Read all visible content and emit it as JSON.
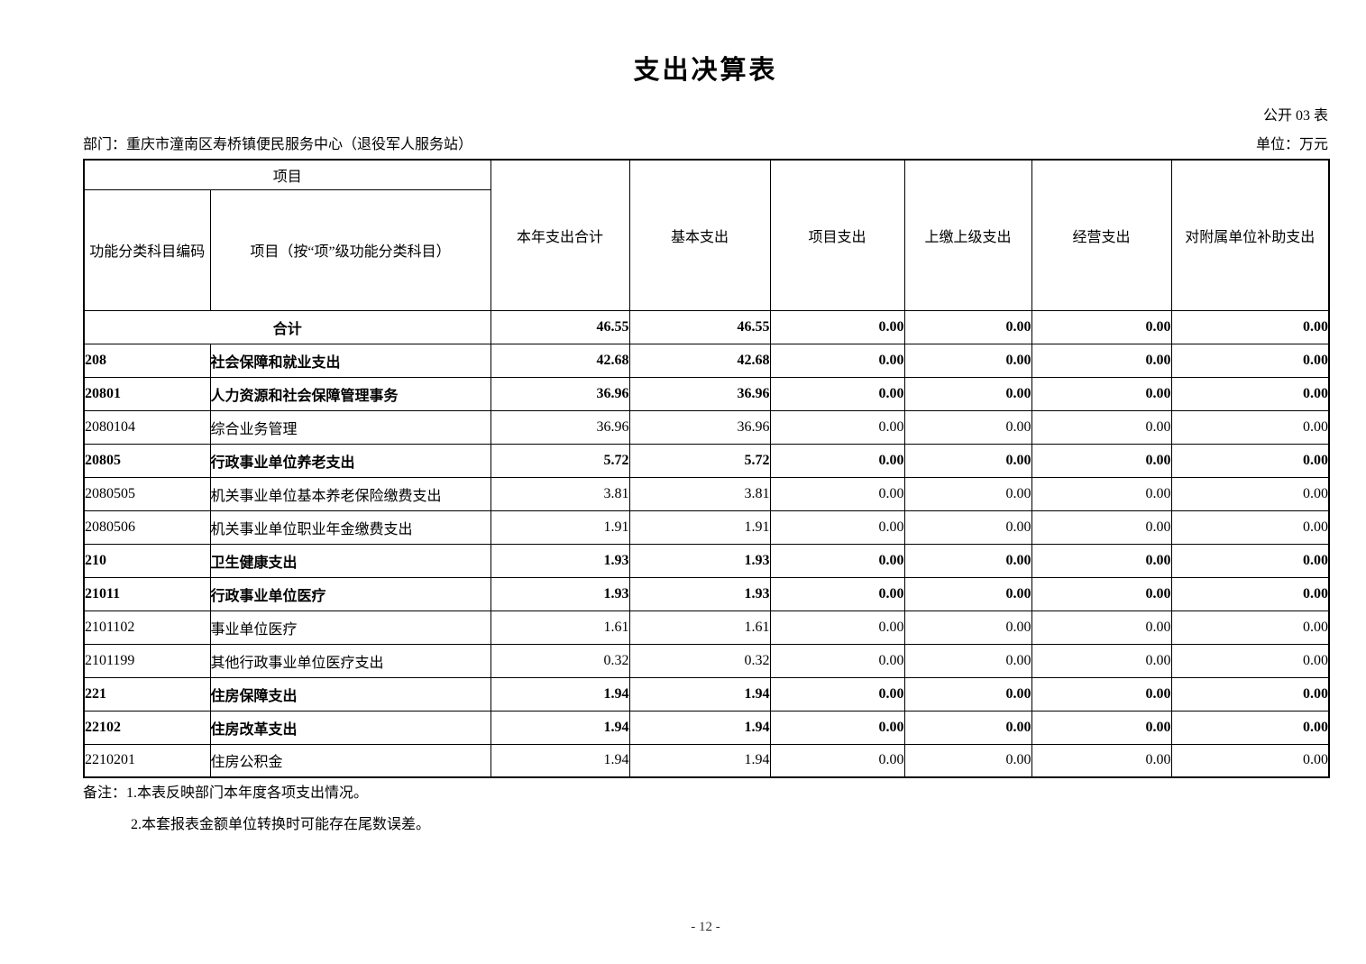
{
  "page": {
    "title": "支出决算表",
    "table_tag": "公开 03 表",
    "department": "部门：重庆市潼南区寿桥镇便民服务中心（退役军人服务站）",
    "unit": "单位：万元",
    "page_number": "- 12 -"
  },
  "table": {
    "header": {
      "group_label": "项目",
      "col_code": "功能分类科目编码",
      "col_name": "项目（按“项”级功能分类科目）",
      "col_total": "本年支出合计",
      "col_basic": "基本支出",
      "col_project": "项目支出",
      "col_upper": "上缴上级支出",
      "col_operating": "经营支出",
      "col_subsidy": "对附属单位补助支出"
    },
    "rows": [
      {
        "code": "",
        "name": "合计",
        "total": "46.55",
        "basic": "46.55",
        "project": "0.00",
        "upper": "0.00",
        "operating": "0.00",
        "subsidy": "0.00",
        "bold": true,
        "merged": true
      },
      {
        "code": "208",
        "name": "社会保障和就业支出",
        "total": "42.68",
        "basic": "42.68",
        "project": "0.00",
        "upper": "0.00",
        "operating": "0.00",
        "subsidy": "0.00",
        "bold": true,
        "merged": false
      },
      {
        "code": "20801",
        "name": "人力资源和社会保障管理事务",
        "total": "36.96",
        "basic": "36.96",
        "project": "0.00",
        "upper": "0.00",
        "operating": "0.00",
        "subsidy": "0.00",
        "bold": true,
        "merged": false
      },
      {
        "code": "2080104",
        "name": "综合业务管理",
        "total": "36.96",
        "basic": "36.96",
        "project": "0.00",
        "upper": "0.00",
        "operating": "0.00",
        "subsidy": "0.00",
        "bold": false,
        "merged": false
      },
      {
        "code": "20805",
        "name": "行政事业单位养老支出",
        "total": "5.72",
        "basic": "5.72",
        "project": "0.00",
        "upper": "0.00",
        "operating": "0.00",
        "subsidy": "0.00",
        "bold": true,
        "merged": false
      },
      {
        "code": "2080505",
        "name": "机关事业单位基本养老保险缴费支出",
        "total": "3.81",
        "basic": "3.81",
        "project": "0.00",
        "upper": "0.00",
        "operating": "0.00",
        "subsidy": "0.00",
        "bold": false,
        "merged": false
      },
      {
        "code": "2080506",
        "name": "机关事业单位职业年金缴费支出",
        "total": "1.91",
        "basic": "1.91",
        "project": "0.00",
        "upper": "0.00",
        "operating": "0.00",
        "subsidy": "0.00",
        "bold": false,
        "merged": false
      },
      {
        "code": "210",
        "name": "卫生健康支出",
        "total": "1.93",
        "basic": "1.93",
        "project": "0.00",
        "upper": "0.00",
        "operating": "0.00",
        "subsidy": "0.00",
        "bold": true,
        "merged": false
      },
      {
        "code": "21011",
        "name": "行政事业单位医疗",
        "total": "1.93",
        "basic": "1.93",
        "project": "0.00",
        "upper": "0.00",
        "operating": "0.00",
        "subsidy": "0.00",
        "bold": true,
        "merged": false
      },
      {
        "code": "2101102",
        "name": "事业单位医疗",
        "total": "1.61",
        "basic": "1.61",
        "project": "0.00",
        "upper": "0.00",
        "operating": "0.00",
        "subsidy": "0.00",
        "bold": false,
        "merged": false
      },
      {
        "code": "2101199",
        "name": "其他行政事业单位医疗支出",
        "total": "0.32",
        "basic": "0.32",
        "project": "0.00",
        "upper": "0.00",
        "operating": "0.00",
        "subsidy": "0.00",
        "bold": false,
        "merged": false
      },
      {
        "code": "221",
        "name": "住房保障支出",
        "total": "1.94",
        "basic": "1.94",
        "project": "0.00",
        "upper": "0.00",
        "operating": "0.00",
        "subsidy": "0.00",
        "bold": true,
        "merged": false
      },
      {
        "code": "22102",
        "name": "住房改革支出",
        "total": "1.94",
        "basic": "1.94",
        "project": "0.00",
        "upper": "0.00",
        "operating": "0.00",
        "subsidy": "0.00",
        "bold": true,
        "merged": false
      },
      {
        "code": "2210201",
        "name": "住房公积金",
        "total": "1.94",
        "basic": "1.94",
        "project": "0.00",
        "upper": "0.00",
        "operating": "0.00",
        "subsidy": "0.00",
        "bold": false,
        "merged": false
      }
    ]
  },
  "notes": [
    "备注：1.本表反映部门本年度各项支出情况。",
    "2.本套报表金额单位转换时可能存在尾数误差。"
  ]
}
